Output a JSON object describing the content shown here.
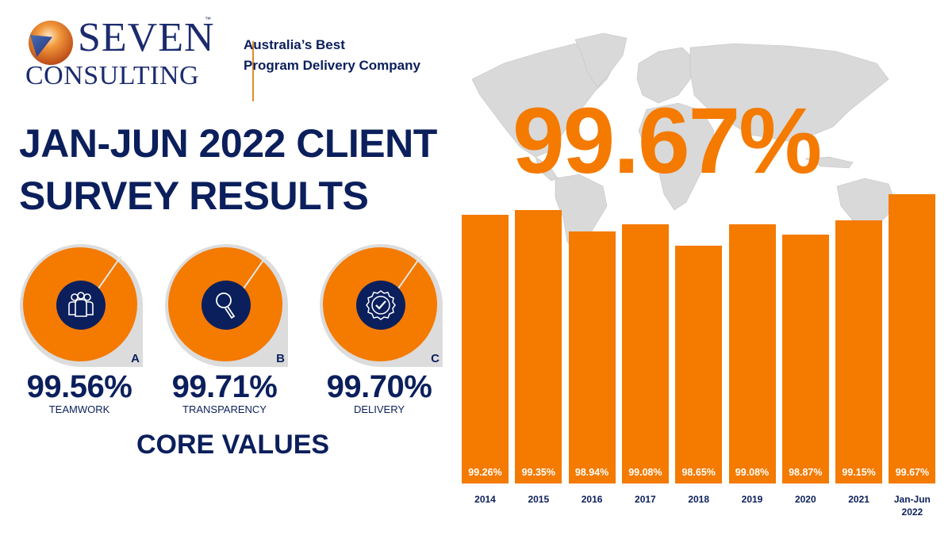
{
  "logo": {
    "name_line1": "SEVEN",
    "name_line2": "CONSULTING",
    "trademark": "™"
  },
  "tagline": {
    "line1": "Australia’s Best",
    "line2": "Program Delivery Company"
  },
  "title": {
    "line1": "JAN-JUN 2022 CLIENT",
    "line2": "SURVEY RESULTS"
  },
  "headline_figure": "99.67%",
  "colors": {
    "navy": "#0b1f5c",
    "orange": "#f47a00",
    "ring_grey": "#dcdcdc",
    "map_grey": "#d9d9d9"
  },
  "core_values": {
    "title": "CORE VALUES",
    "items": [
      {
        "letter": "A",
        "value": "99.56%",
        "label": "TEAMWORK",
        "icon": "team-icon"
      },
      {
        "letter": "B",
        "value": "99.71%",
        "label": "TRANSPARENCY",
        "icon": "magnifier-icon"
      },
      {
        "letter": "C",
        "value": "99.70%",
        "label": "DELIVERY",
        "icon": "badge-check-icon"
      }
    ]
  },
  "chart_data": {
    "type": "bar",
    "title": "Client Survey Results by Year",
    "categories": [
      "2014",
      "2015",
      "2016",
      "2017",
      "2018",
      "2019",
      "2020",
      "2021",
      "Jan-Jun 2022"
    ],
    "values": [
      99.26,
      99.35,
      98.94,
      99.08,
      98.65,
      99.08,
      98.87,
      99.15,
      99.67
    ],
    "value_labels": [
      "99.26%",
      "99.35%",
      "98.94%",
      "99.08%",
      "98.65%",
      "99.08%",
      "98.87%",
      "99.15%",
      "99.67%"
    ],
    "xlabel": "",
    "ylabel": "",
    "ylim": [
      97.0,
      100.0
    ],
    "grid": false,
    "legend": "none",
    "bar_color": "#f47a00"
  },
  "chart_labels": {
    "x": [
      {
        "l1": "2014",
        "l2": ""
      },
      {
        "l1": "2015",
        "l2": ""
      },
      {
        "l1": "2016",
        "l2": ""
      },
      {
        "l1": "2017",
        "l2": ""
      },
      {
        "l1": "2018",
        "l2": ""
      },
      {
        "l1": "2019",
        "l2": ""
      },
      {
        "l1": "2020",
        "l2": ""
      },
      {
        "l1": "2021",
        "l2": ""
      },
      {
        "l1": "Jan-Jun",
        "l2": "2022"
      }
    ]
  }
}
